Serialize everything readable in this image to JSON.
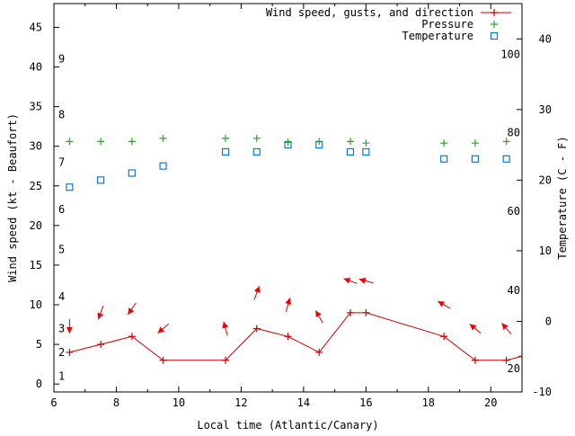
{
  "chart_data": {
    "type": "line",
    "x_label": "Local time (Atlantic/Canary)",
    "y_label": "Wind speed (kt - Beaufort)",
    "y2_label": "Temperature (C - F)",
    "x_range": [
      6,
      21
    ],
    "y_range": [
      -1,
      48
    ],
    "y2_range": [
      -10,
      45
    ],
    "x_ticks": [
      6,
      8,
      10,
      12,
      14,
      16,
      18,
      20
    ],
    "y_ticks": [
      0,
      5,
      10,
      15,
      20,
      25,
      30,
      35,
      40,
      45
    ],
    "y2_ticks": [
      -10,
      0,
      10,
      20,
      30,
      40
    ],
    "beaufort_labels": [
      {
        "label": "1",
        "kt": 1
      },
      {
        "label": "2",
        "kt": 4
      },
      {
        "label": "3",
        "kt": 7
      },
      {
        "label": "4",
        "kt": 11
      },
      {
        "label": "5",
        "kt": 17
      },
      {
        "label": "6",
        "kt": 22
      },
      {
        "label": "7",
        "kt": 28
      },
      {
        "label": "8",
        "kt": 34
      },
      {
        "label": "9",
        "kt": 41
      }
    ],
    "fahrenheit_labels": [
      {
        "label": "20",
        "celsius": -6.7
      },
      {
        "label": "40",
        "celsius": 4.4
      },
      {
        "label": "60",
        "celsius": 15.6
      },
      {
        "label": "80",
        "celsius": 26.7
      },
      {
        "label": "100",
        "celsius": 37.8
      }
    ],
    "legend": [
      {
        "label": "Wind speed, gusts, and direction",
        "color": "#cc0000",
        "marker": "plus-line"
      },
      {
        "label": "Pressure",
        "color": "#22aa22",
        "marker": "plus"
      },
      {
        "label": "Temperature",
        "color": "#1177cc",
        "marker": "square"
      }
    ],
    "series": [
      {
        "name": "Wind speed",
        "axis": "y",
        "color": "#cc0000",
        "points": [
          {
            "x": 6.5,
            "y": 4
          },
          {
            "x": 7.5,
            "y": 5
          },
          {
            "x": 8.5,
            "y": 6
          },
          {
            "x": 9.5,
            "y": 3
          },
          {
            "x": 11.5,
            "y": 3
          },
          {
            "x": 12.5,
            "y": 7
          },
          {
            "x": 13.5,
            "y": 6
          },
          {
            "x": 14.5,
            "y": 4
          },
          {
            "x": 15.5,
            "y": 9
          },
          {
            "x": 16,
            "y": 9
          },
          {
            "x": 18.5,
            "y": 6
          },
          {
            "x": 19.5,
            "y": 3
          },
          {
            "x": 20.5,
            "y": 3
          },
          {
            "x": 21,
            "y": 3.5
          }
        ]
      },
      {
        "name": "Pressure",
        "axis": "y",
        "color": "#22aa22",
        "points": [
          {
            "x": 6.5,
            "y": 30.6
          },
          {
            "x": 7.5,
            "y": 30.6
          },
          {
            "x": 8.5,
            "y": 30.6
          },
          {
            "x": 9.5,
            "y": 31
          },
          {
            "x": 11.5,
            "y": 31
          },
          {
            "x": 12.5,
            "y": 31
          },
          {
            "x": 13.5,
            "y": 30.5
          },
          {
            "x": 14.5,
            "y": 30.6
          },
          {
            "x": 15.5,
            "y": 30.6
          },
          {
            "x": 16,
            "y": 30.4
          },
          {
            "x": 18.5,
            "y": 30.4
          },
          {
            "x": 19.5,
            "y": 30.4
          },
          {
            "x": 20.5,
            "y": 30.6
          }
        ]
      },
      {
        "name": "Temperature",
        "axis": "y2",
        "color": "#1177cc",
        "points": [
          {
            "x": 6.5,
            "y": 19
          },
          {
            "x": 7.5,
            "y": 20
          },
          {
            "x": 8.5,
            "y": 21
          },
          {
            "x": 9.5,
            "y": 22
          },
          {
            "x": 11.5,
            "y": 24
          },
          {
            "x": 12.5,
            "y": 24
          },
          {
            "x": 13.5,
            "y": 25
          },
          {
            "x": 14.5,
            "y": 25
          },
          {
            "x": 15.5,
            "y": 24
          },
          {
            "x": 16,
            "y": 24
          },
          {
            "x": 18.5,
            "y": 23
          },
          {
            "x": 19.5,
            "y": 23
          },
          {
            "x": 20.5,
            "y": 23
          }
        ]
      }
    ],
    "wind_direction": [
      {
        "x": 6.5,
        "y": 7.3,
        "to_deg": 180
      },
      {
        "x": 7.5,
        "y": 9.0,
        "to_deg": 200
      },
      {
        "x": 8.5,
        "y": 9.5,
        "to_deg": 215
      },
      {
        "x": 9.5,
        "y": 7.0,
        "to_deg": 230
      },
      {
        "x": 11.5,
        "y": 7.0,
        "to_deg": 345
      },
      {
        "x": 12.5,
        "y": 11.5,
        "to_deg": 20
      },
      {
        "x": 13.5,
        "y": 10.0,
        "to_deg": 15
      },
      {
        "x": 14.5,
        "y": 8.5,
        "to_deg": 330
      },
      {
        "x": 15.5,
        "y": 13.0,
        "to_deg": 290
      },
      {
        "x": 16,
        "y": 13.0,
        "to_deg": 285
      },
      {
        "x": 18.5,
        "y": 10.0,
        "to_deg": 300
      },
      {
        "x": 19.5,
        "y": 7.0,
        "to_deg": 310
      },
      {
        "x": 20.5,
        "y": 7.0,
        "to_deg": 320
      }
    ]
  }
}
